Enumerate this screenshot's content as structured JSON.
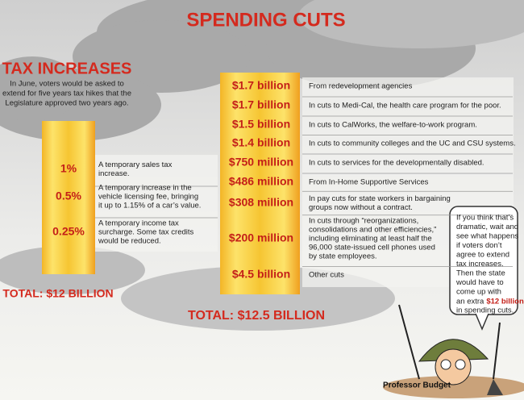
{
  "spending": {
    "title": "SPENDING CUTS",
    "items": [
      {
        "amount": "$1.7 billion",
        "description": [
          "From redevelopment agencies"
        ]
      },
      {
        "amount": "$1.7 billion",
        "description": [
          "In cuts to Medi-Cal, the health care program for the poor."
        ]
      },
      {
        "amount": "$1.5 billion",
        "description": [
          "In cuts to CalWorks, the welfare-to-work program."
        ]
      },
      {
        "amount": "$1.4 billion",
        "description": [
          "In cuts to community colleges and the UC and CSU systems."
        ]
      },
      {
        "amount": "$750 million",
        "description": [
          "In cuts to services for the developmentally disabled."
        ]
      },
      {
        "amount": "$486 million",
        "description": [
          "From In-Home Supportive Services"
        ]
      },
      {
        "amount": "$308 million",
        "description": [
          "In pay cuts for state workers in bargaining",
          "groups now without a contract."
        ]
      },
      {
        "amount": "$200 million",
        "description": [
          "In cuts through “reorganizations,",
          "consolidations and other efficiencies,”",
          "including eliminating at least half the",
          "96,000 state-issued cell phones used",
          "by state employees."
        ]
      },
      {
        "amount": "$4.5 billion",
        "description": [
          "Other cuts"
        ]
      }
    ],
    "total": "TOTAL: $12.5 BILLION"
  },
  "tax": {
    "title": "TAX INCREASES",
    "intro": [
      "In June, voters would be asked to",
      "extend for five years tax hikes that the",
      "Legislature approved two years ago."
    ],
    "items": [
      {
        "amount": "1%",
        "description": [
          "A temporary sales tax",
          "increase."
        ]
      },
      {
        "amount": "0.5%",
        "description": [
          "A temporary increase in the",
          "vehicle licensing fee, bringing",
          "it up to 1.15% of a car’s value."
        ]
      },
      {
        "amount": "0.25%",
        "description": [
          "A temporary income tax",
          "surcharge. Some tax credits",
          "would be reduced."
        ]
      }
    ],
    "total": "TOTAL: $12 BILLION"
  },
  "professor": {
    "bubble_lines": [
      "If you think that’s",
      "dramatic, wait and",
      "see what happens",
      "if voters don’t",
      "agree to extend",
      "tax increases.",
      "Then the state",
      "would have to",
      "come up with"
    ],
    "extra": "an extra",
    "amount": "$12 billion",
    "after": "in spending cuts.",
    "name": "Professor Budget"
  }
}
